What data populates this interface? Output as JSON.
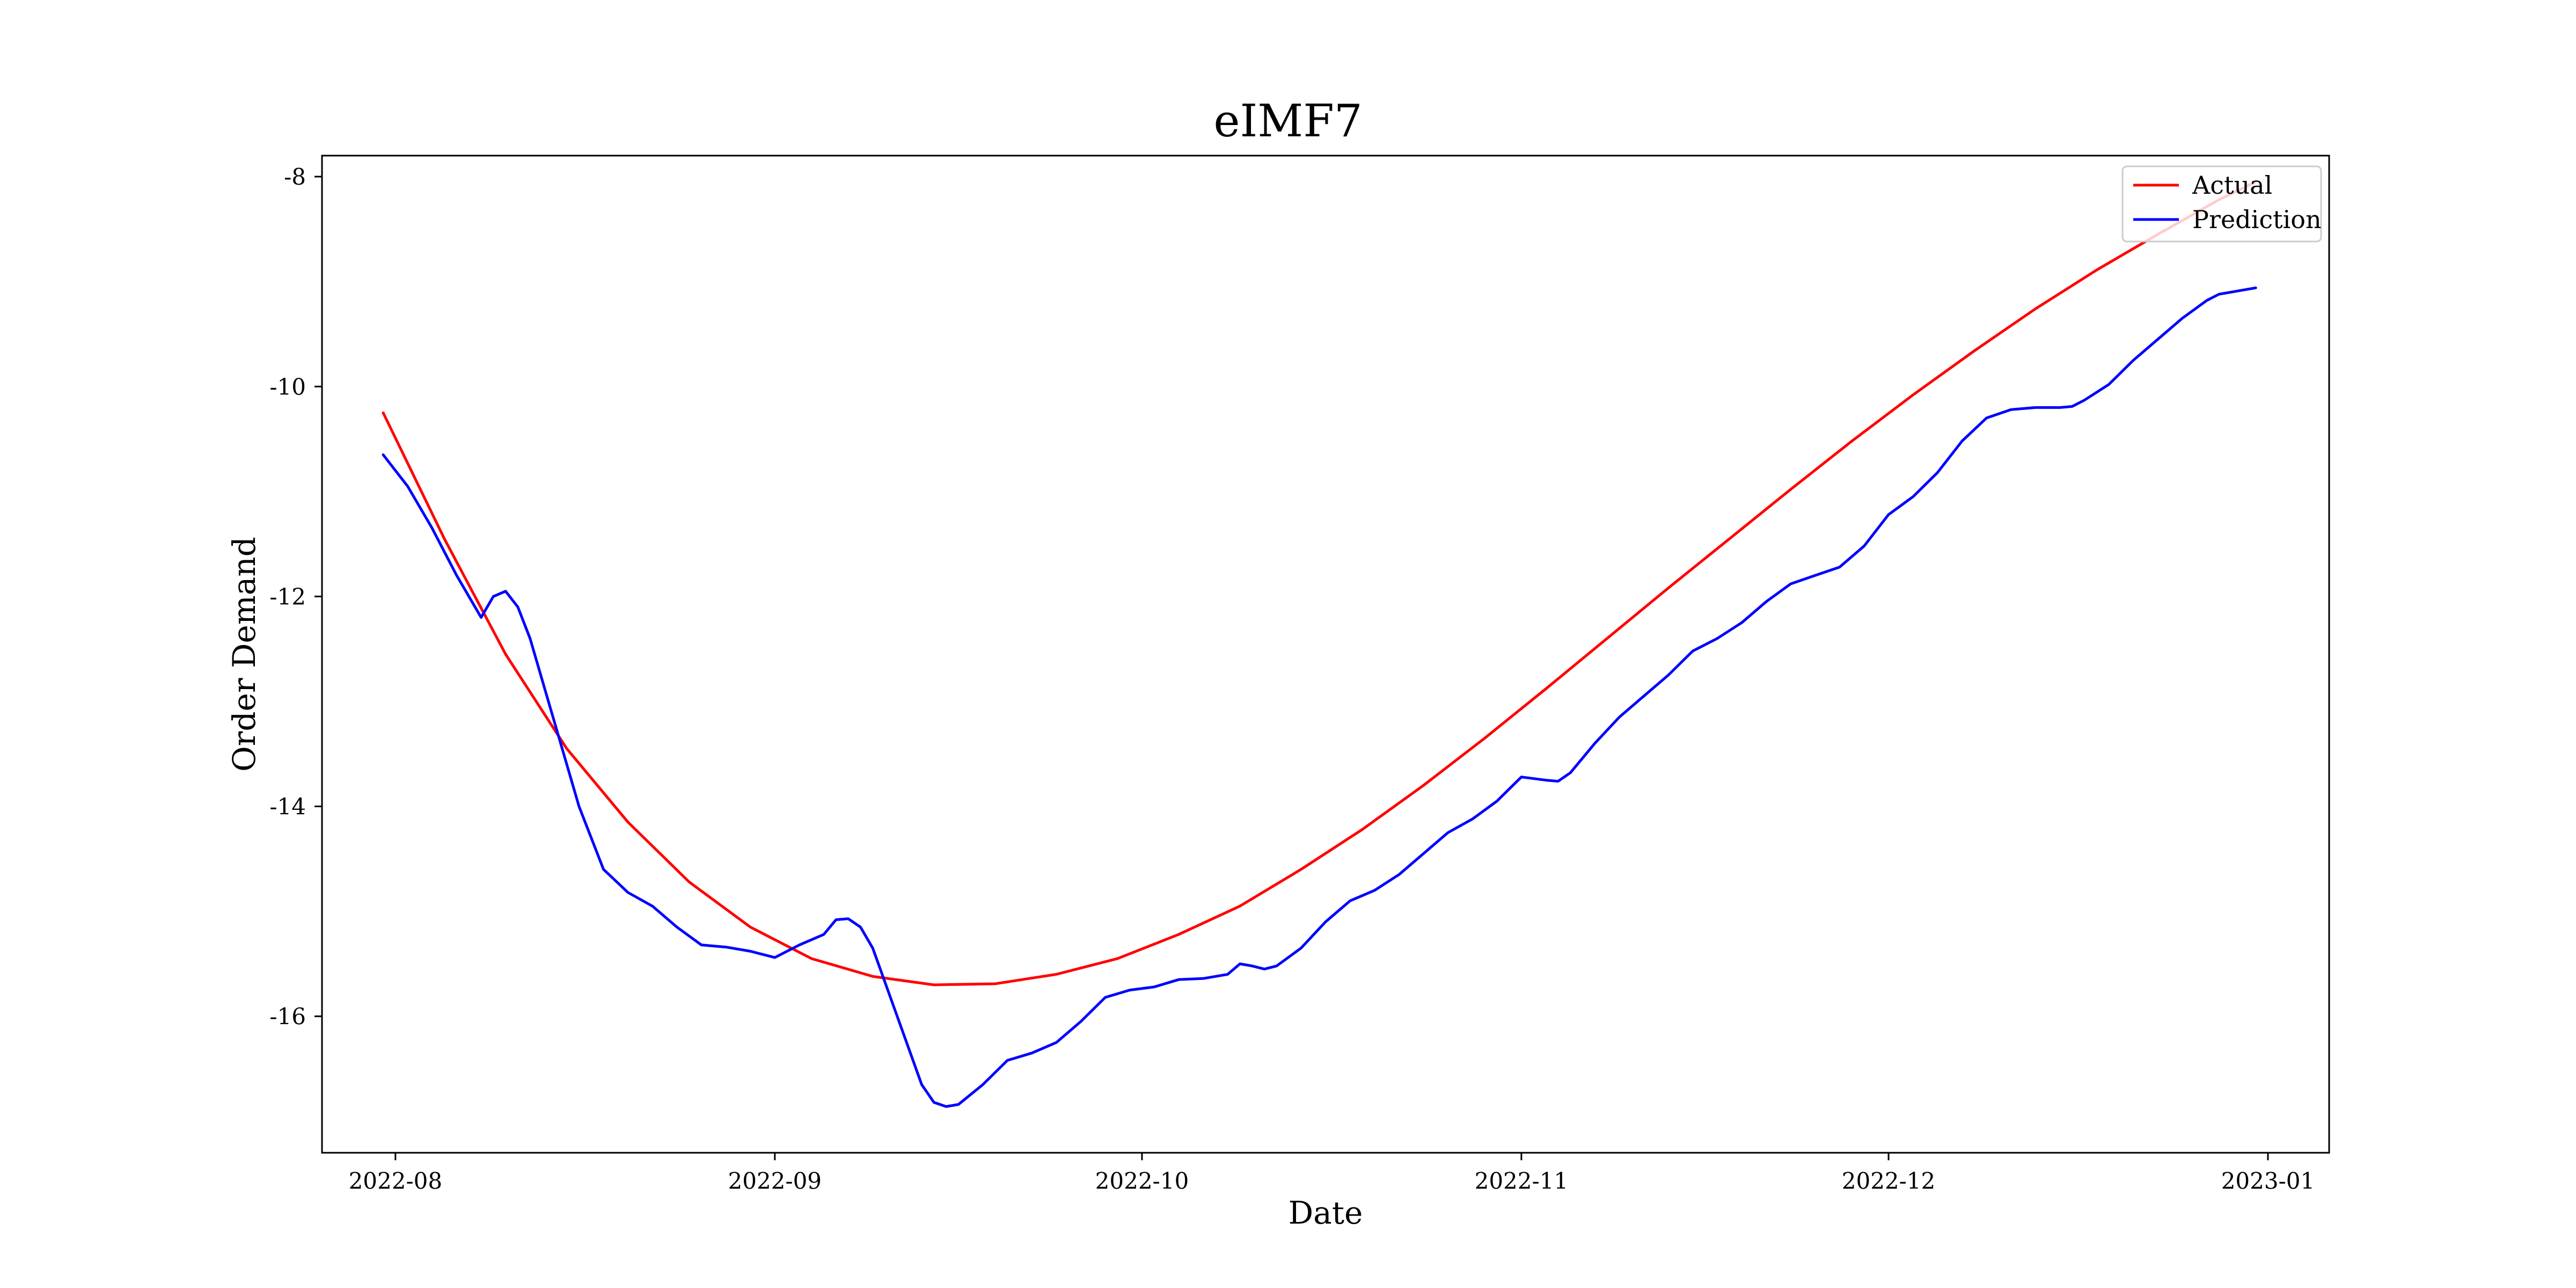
{
  "chart_data": {
    "type": "line",
    "title": "eIMF7",
    "xlabel": "Date",
    "ylabel": "Order Demand",
    "x_type": "date",
    "xlim": [
      "2022-07-26",
      "2023-01-06"
    ],
    "ylim": [
      -17.3,
      -7.8
    ],
    "x_ticks": [
      {
        "date": "2022-08-01",
        "label": "2022-08"
      },
      {
        "date": "2022-09-01",
        "label": "2022-09"
      },
      {
        "date": "2022-10-01",
        "label": "2022-10"
      },
      {
        "date": "2022-11-01",
        "label": "2022-11"
      },
      {
        "date": "2022-12-01",
        "label": "2022-12"
      },
      {
        "date": "2023-01-01",
        "label": "2023-01"
      }
    ],
    "y_ticks": [
      {
        "value": -8,
        "label": "-8"
      },
      {
        "value": -10,
        "label": "-10"
      },
      {
        "value": -12,
        "label": "-12"
      },
      {
        "value": -14,
        "label": "-14"
      },
      {
        "value": -16,
        "label": "-16"
      }
    ],
    "grid": false,
    "legend_position": "top-right",
    "series": [
      {
        "name": "Actual",
        "color": "#ff0000",
        "points": [
          [
            "2022-07-31",
            -10.25
          ],
          [
            "2022-08-05",
            -11.45
          ],
          [
            "2022-08-10",
            -12.55
          ],
          [
            "2022-08-15",
            -13.45
          ],
          [
            "2022-08-20",
            -14.15
          ],
          [
            "2022-08-25",
            -14.72
          ],
          [
            "2022-08-30",
            -15.15
          ],
          [
            "2022-09-04",
            -15.45
          ],
          [
            "2022-09-09",
            -15.62
          ],
          [
            "2022-09-14",
            -15.7
          ],
          [
            "2022-09-19",
            -15.69
          ],
          [
            "2022-09-24",
            -15.6
          ],
          [
            "2022-09-29",
            -15.45
          ],
          [
            "2022-10-04",
            -15.22
          ],
          [
            "2022-10-09",
            -14.95
          ],
          [
            "2022-10-14",
            -14.6
          ],
          [
            "2022-10-19",
            -14.22
          ],
          [
            "2022-10-24",
            -13.8
          ],
          [
            "2022-10-29",
            -13.35
          ],
          [
            "2022-11-03",
            -12.88
          ],
          [
            "2022-11-08",
            -12.4
          ],
          [
            "2022-11-13",
            -11.92
          ],
          [
            "2022-11-18",
            -11.45
          ],
          [
            "2022-11-23",
            -10.98
          ],
          [
            "2022-11-28",
            -10.52
          ],
          [
            "2022-12-03",
            -10.08
          ],
          [
            "2022-12-08",
            -9.66
          ],
          [
            "2022-12-13",
            -9.26
          ],
          [
            "2022-12-18",
            -8.89
          ],
          [
            "2022-12-23",
            -8.55
          ],
          [
            "2022-12-28",
            -8.22
          ],
          [
            "2022-12-31",
            -8.05
          ]
        ]
      },
      {
        "name": "Prediction",
        "color": "#0000ff",
        "points": [
          [
            "2022-07-31",
            -10.65
          ],
          [
            "2022-08-02",
            -10.95
          ],
          [
            "2022-08-04",
            -11.35
          ],
          [
            "2022-08-06",
            -11.8
          ],
          [
            "2022-08-08",
            -12.2
          ],
          [
            "2022-08-09",
            -12.0
          ],
          [
            "2022-08-10",
            -11.95
          ],
          [
            "2022-08-11",
            -12.1
          ],
          [
            "2022-08-12",
            -12.4
          ],
          [
            "2022-08-14",
            -13.2
          ],
          [
            "2022-08-16",
            -14.0
          ],
          [
            "2022-08-18",
            -14.6
          ],
          [
            "2022-08-20",
            -14.82
          ],
          [
            "2022-08-22",
            -14.95
          ],
          [
            "2022-08-24",
            -15.15
          ],
          [
            "2022-08-26",
            -15.32
          ],
          [
            "2022-08-28",
            -15.34
          ],
          [
            "2022-08-30",
            -15.38
          ],
          [
            "2022-09-01",
            -15.44
          ],
          [
            "2022-09-03",
            -15.32
          ],
          [
            "2022-09-05",
            -15.22
          ],
          [
            "2022-09-06",
            -15.08
          ],
          [
            "2022-09-07",
            -15.07
          ],
          [
            "2022-09-08",
            -15.15
          ],
          [
            "2022-09-09",
            -15.35
          ],
          [
            "2022-09-11",
            -16.0
          ],
          [
            "2022-09-13",
            -16.65
          ],
          [
            "2022-09-14",
            -16.82
          ],
          [
            "2022-09-15",
            -16.86
          ],
          [
            "2022-09-16",
            -16.84
          ],
          [
            "2022-09-18",
            -16.65
          ],
          [
            "2022-09-20",
            -16.42
          ],
          [
            "2022-09-22",
            -16.35
          ],
          [
            "2022-09-24",
            -16.25
          ],
          [
            "2022-09-26",
            -16.05
          ],
          [
            "2022-09-28",
            -15.82
          ],
          [
            "2022-09-30",
            -15.75
          ],
          [
            "2022-10-02",
            -15.72
          ],
          [
            "2022-10-04",
            -15.65
          ],
          [
            "2022-10-06",
            -15.64
          ],
          [
            "2022-10-08",
            -15.6
          ],
          [
            "2022-10-09",
            -15.5
          ],
          [
            "2022-10-10",
            -15.52
          ],
          [
            "2022-10-11",
            -15.55
          ],
          [
            "2022-10-12",
            -15.52
          ],
          [
            "2022-10-14",
            -15.35
          ],
          [
            "2022-10-16",
            -15.1
          ],
          [
            "2022-10-18",
            -14.9
          ],
          [
            "2022-10-20",
            -14.8
          ],
          [
            "2022-10-22",
            -14.65
          ],
          [
            "2022-10-24",
            -14.45
          ],
          [
            "2022-10-26",
            -14.25
          ],
          [
            "2022-10-28",
            -14.12
          ],
          [
            "2022-10-30",
            -13.95
          ],
          [
            "2022-11-01",
            -13.72
          ],
          [
            "2022-11-03",
            -13.75
          ],
          [
            "2022-11-04",
            -13.76
          ],
          [
            "2022-11-05",
            -13.68
          ],
          [
            "2022-11-07",
            -13.4
          ],
          [
            "2022-11-09",
            -13.15
          ],
          [
            "2022-11-11",
            -12.95
          ],
          [
            "2022-11-13",
            -12.75
          ],
          [
            "2022-11-15",
            -12.52
          ],
          [
            "2022-11-17",
            -12.4
          ],
          [
            "2022-11-19",
            -12.25
          ],
          [
            "2022-11-21",
            -12.05
          ],
          [
            "2022-11-23",
            -11.88
          ],
          [
            "2022-11-25",
            -11.8
          ],
          [
            "2022-11-27",
            -11.72
          ],
          [
            "2022-11-29",
            -11.52
          ],
          [
            "2022-12-01",
            -11.22
          ],
          [
            "2022-12-03",
            -11.05
          ],
          [
            "2022-12-05",
            -10.82
          ],
          [
            "2022-12-07",
            -10.52
          ],
          [
            "2022-12-09",
            -10.3
          ],
          [
            "2022-12-11",
            -10.22
          ],
          [
            "2022-12-13",
            -10.2
          ],
          [
            "2022-12-15",
            -10.2
          ],
          [
            "2022-12-16",
            -10.19
          ],
          [
            "2022-12-17",
            -10.13
          ],
          [
            "2022-12-19",
            -9.98
          ],
          [
            "2022-12-21",
            -9.75
          ],
          [
            "2022-12-23",
            -9.55
          ],
          [
            "2022-12-25",
            -9.35
          ],
          [
            "2022-12-27",
            -9.18
          ],
          [
            "2022-12-28",
            -9.12
          ],
          [
            "2022-12-29",
            -9.1
          ],
          [
            "2022-12-30",
            -9.08
          ],
          [
            "2022-12-31",
            -9.06
          ]
        ]
      }
    ]
  }
}
